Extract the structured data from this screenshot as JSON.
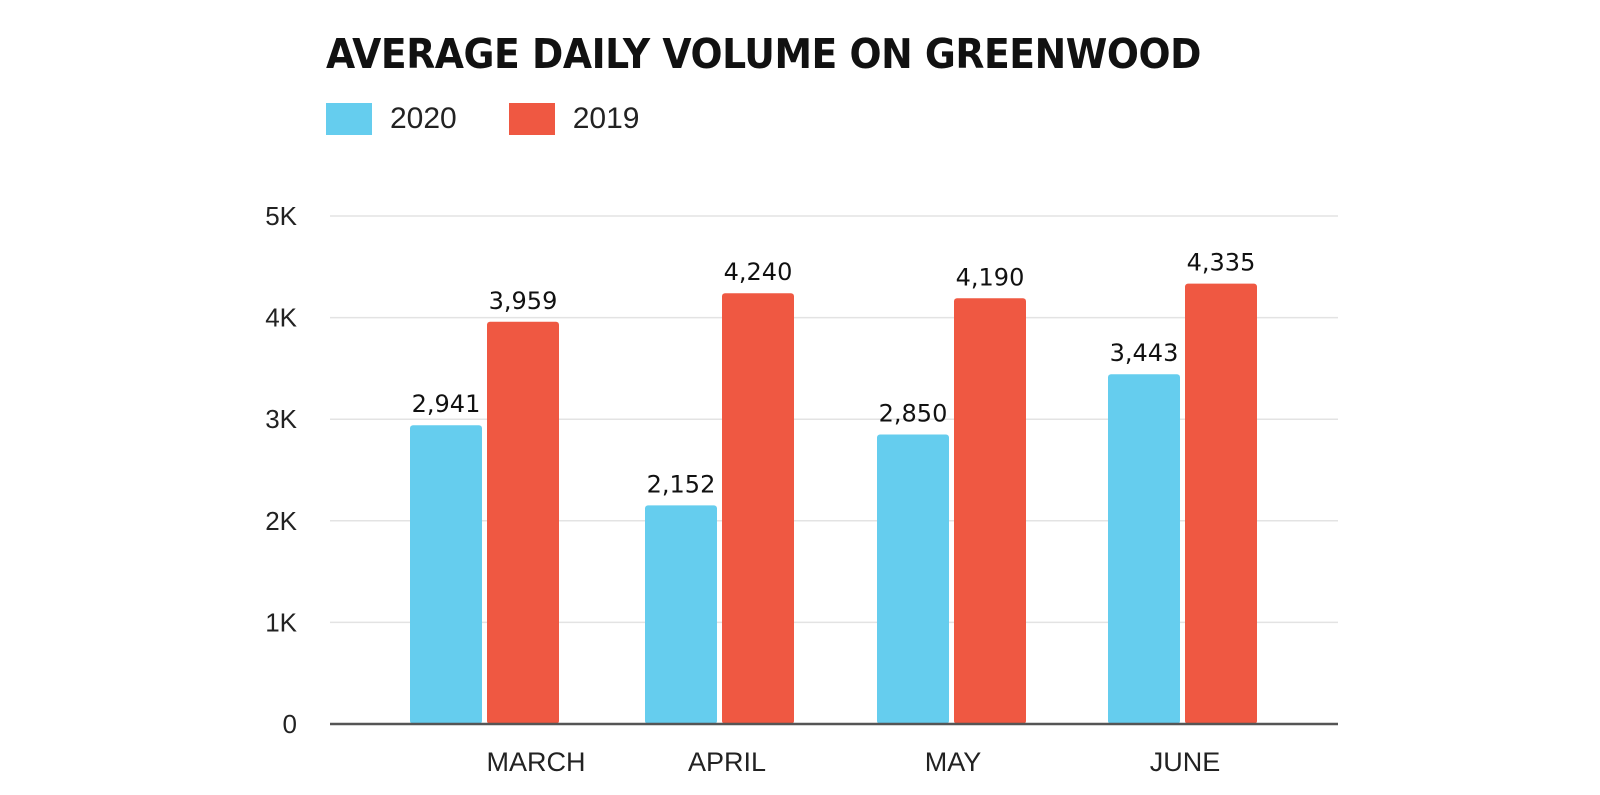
{
  "chart_data": {
    "type": "bar",
    "title": "AVERAGE DAILY VOLUME ON GREENWOOD",
    "categories": [
      "MARCH",
      "APRIL",
      "MAY",
      "JUNE"
    ],
    "series": [
      {
        "name": "2020",
        "color": "#65cdee",
        "values": [
          2941,
          2152,
          2850,
          3443
        ],
        "labels": [
          "2,941",
          "2,152",
          "2,850",
          "3,443"
        ]
      },
      {
        "name": "2019",
        "color": "#ef5842",
        "values": [
          3959,
          4240,
          4190,
          4335
        ],
        "labels": [
          "3,959",
          "4,240",
          "4,190",
          "4,335"
        ]
      }
    ],
    "y_ticks": [
      {
        "value": 0,
        "label": "0"
      },
      {
        "value": 1000,
        "label": "1K"
      },
      {
        "value": 2000,
        "label": "2K"
      },
      {
        "value": 3000,
        "label": "3K"
      },
      {
        "value": 4000,
        "label": "4K"
      },
      {
        "value": 5000,
        "label": "5K"
      }
    ],
    "ylim": [
      0,
      5000
    ],
    "xlabel": "",
    "ylabel": "",
    "grid": true,
    "legend_position": "top-left"
  }
}
